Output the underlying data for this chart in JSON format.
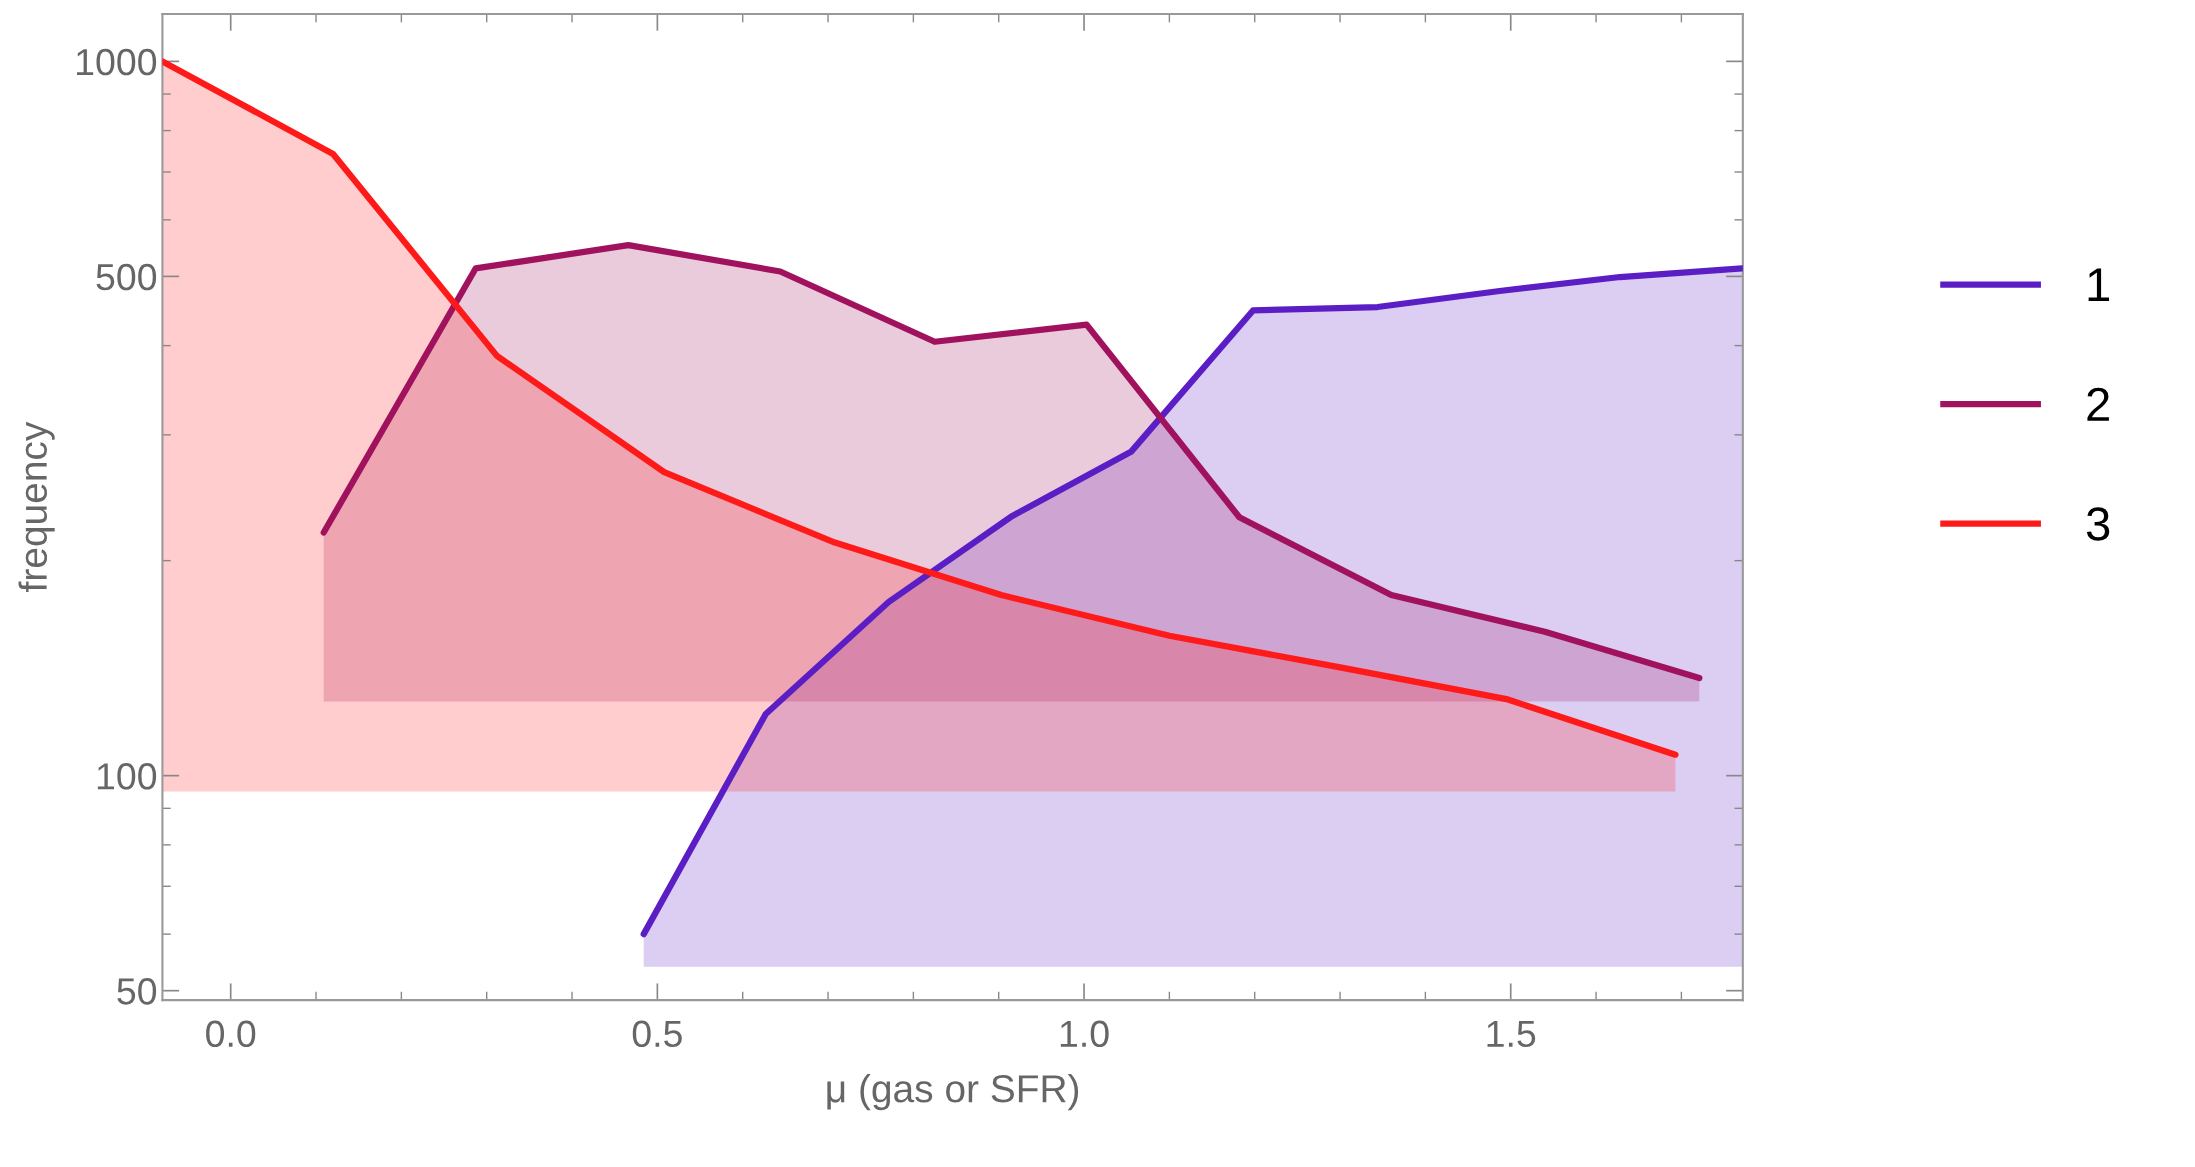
{
  "chart_data": {
    "type": "line",
    "xlabel": "μ (gas or SFR)",
    "ylabel": "frequency",
    "log": "y",
    "legend": "right",
    "grid": false,
    "xlim": [
      -0.08,
      1.772
    ],
    "xticks": [
      {
        "value": 0,
        "label": "0.0"
      },
      0.5,
      {
        "value": 1,
        "label": "1.0"
      },
      1.5
    ],
    "ylim": [
      48.5,
      1165
    ],
    "yticks": [
      50,
      100,
      500,
      1000
    ],
    "series": [
      {
        "name": "1",
        "color": "#5a1ec4",
        "x": [
          0.484,
          0.627,
          0.771,
          0.916,
          1.055,
          1.198,
          1.344,
          1.487,
          1.628,
          1.771
        ],
        "values": [
          60,
          122,
          175,
          231,
          284,
          448,
          453,
          477,
          499,
          513
        ],
        "lower": [
          54,
          54,
          54,
          54,
          54,
          54,
          54,
          54,
          54,
          54
        ],
        "upper": [
          60,
          122,
          175,
          231,
          284,
          448,
          453,
          477,
          499,
          513
        ]
      },
      {
        "name": "2",
        "color": "#a0125e",
        "x": [
          0.109,
          0.287,
          0.466,
          0.644,
          0.825,
          1.003,
          1.182,
          1.36,
          1.54,
          1.721
        ],
        "values": [
          219,
          513,
          553,
          508,
          405,
          428,
          230,
          179,
          159,
          137
        ],
        "lower": [
          127,
          127,
          127,
          127,
          127,
          127,
          127,
          127,
          127,
          127
        ],
        "upper": [
          219,
          513,
          553,
          508,
          405,
          428,
          230,
          179,
          159,
          137
        ]
      },
      {
        "name": "3",
        "color": "#ff1a1a",
        "x": [
          -0.08,
          0.12,
          0.312,
          0.508,
          0.708,
          0.903,
          1.1,
          1.297,
          1.495,
          1.693
        ],
        "values": [
          1000,
          742,
          387,
          266,
          212,
          179,
          157,
          142,
          128,
          107
        ],
        "lower": [
          95,
          95,
          95,
          95,
          95,
          95,
          95,
          95,
          95,
          95
        ],
        "upper": [
          1000,
          742,
          387,
          266,
          212,
          179,
          157,
          142,
          128,
          107
        ]
      }
    ]
  }
}
